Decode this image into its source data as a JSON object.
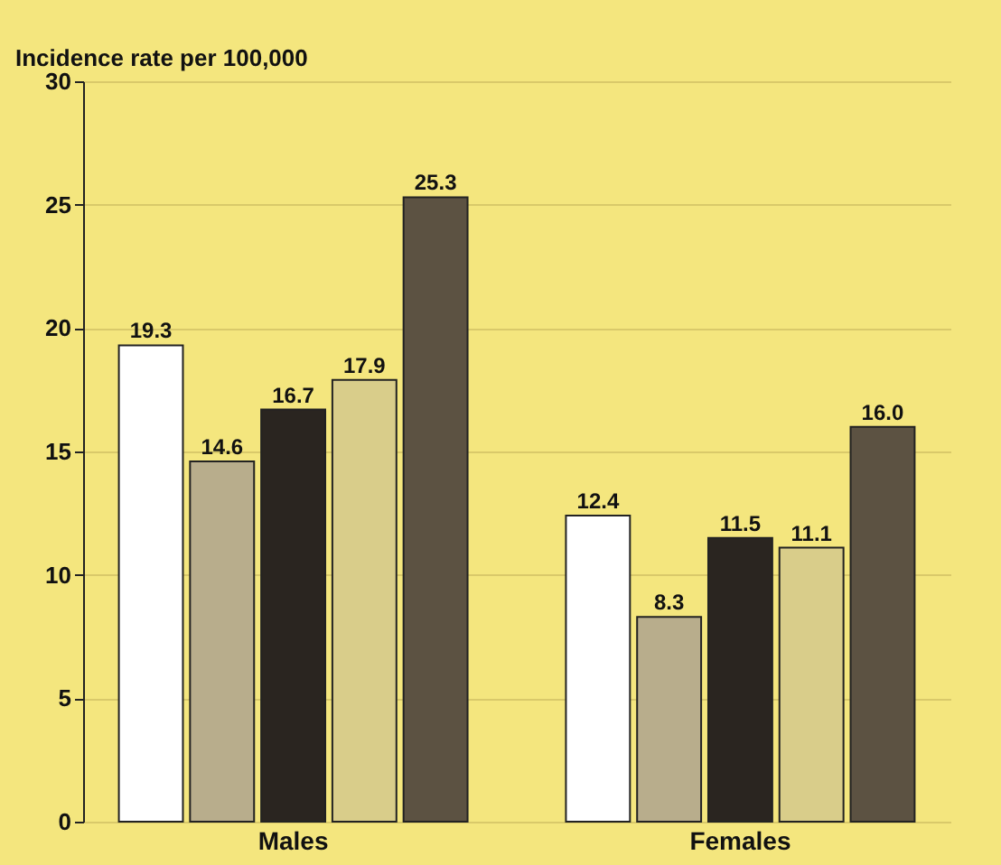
{
  "chart_data": {
    "type": "bar",
    "ylabel": "Incidence rate per 100,000",
    "categories": [
      "Males",
      "Females"
    ],
    "series": [
      {
        "color": "#ffffff",
        "values": [
          19.3,
          12.4
        ],
        "value_labels": [
          "19.3",
          "12.4"
        ]
      },
      {
        "color": "#b8ad8c",
        "values": [
          14.6,
          8.3
        ],
        "value_labels": [
          "14.6",
          "8.3"
        ]
      },
      {
        "color": "#2a2520",
        "values": [
          16.7,
          11.5
        ],
        "value_labels": [
          "16.7",
          "11.5"
        ]
      },
      {
        "color": "#d9cd8a",
        "values": [
          17.9,
          11.1
        ],
        "value_labels": [
          "17.9",
          "11.1"
        ]
      },
      {
        "color": "#5c5242",
        "values": [
          25.3,
          16.0
        ],
        "value_labels": [
          "25.3",
          "16.0"
        ]
      }
    ],
    "ylim": [
      0,
      30
    ],
    "yticks": [
      0,
      5,
      10,
      15,
      20,
      25,
      30
    ],
    "grid": "y"
  }
}
